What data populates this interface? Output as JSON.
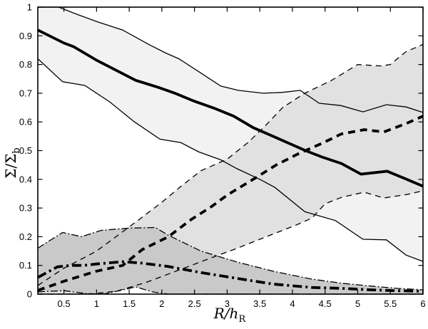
{
  "figure": {
    "background": "#ffffff"
  },
  "axes": {
    "ylabel_main": "Σ/Σ",
    "ylabel_sub": "b",
    "xlabel_main": "R/h",
    "xlabel_sub": "R"
  },
  "chart_data": {
    "type": "line",
    "title": "",
    "xlabel": "R/h_R",
    "ylabel": "Σ/Σ_b",
    "xlim": [
      0.1,
      6.0
    ],
    "ylim": [
      0,
      1
    ],
    "grid": false,
    "legend": "none",
    "line_color": "#000000",
    "x_ticks": [
      "0.5",
      "1",
      "1.5",
      "2",
      "2.5",
      "3",
      "3.5",
      "4",
      "4.5",
      "5",
      "5.5",
      "6"
    ],
    "y_ticks": [
      "0",
      "0.1",
      "0.2",
      "0.3",
      "0.4",
      "0.5",
      "0.6",
      "0.7",
      "0.8",
      "0.9",
      "1"
    ],
    "series": [
      {
        "name": "solid-series",
        "style": "solid",
        "band_fill": "#f2f2f2",
        "center": {
          "x": [
            0.1,
            0.5,
            0.65,
            1.0,
            1.3,
            1.6,
            1.95,
            2.2,
            2.5,
            2.8,
            3.1,
            3.4,
            3.7,
            3.95,
            4.2,
            4.45,
            4.75,
            5.05,
            5.45,
            5.75,
            6.0
          ],
          "y": [
            0.92,
            0.875,
            0.862,
            0.815,
            0.78,
            0.745,
            0.72,
            0.7,
            0.672,
            0.648,
            0.62,
            0.58,
            0.55,
            0.525,
            0.5,
            0.478,
            0.455,
            0.418,
            0.428,
            0.4,
            0.376
          ]
        },
        "upper": {
          "x": [
            0.1,
            0.42,
            0.7,
            1.0,
            1.4,
            1.8,
            2.06,
            2.26,
            2.6,
            2.9,
            3.17,
            3.55,
            3.85,
            4.12,
            4.41,
            4.74,
            5.08,
            5.44,
            5.74,
            6.0
          ],
          "y": [
            1.0,
            1.0,
            0.975,
            0.95,
            0.92,
            0.87,
            0.84,
            0.82,
            0.77,
            0.725,
            0.71,
            0.7,
            0.703,
            0.71,
            0.665,
            0.657,
            0.635,
            0.66,
            0.652,
            0.633
          ]
        },
        "lower": {
          "x": [
            0.1,
            0.48,
            0.82,
            1.2,
            1.58,
            1.97,
            2.29,
            2.56,
            2.9,
            3.15,
            3.5,
            3.73,
            4.19,
            4.66,
            5.08,
            5.44,
            5.74,
            6.0
          ],
          "y": [
            0.82,
            0.74,
            0.727,
            0.67,
            0.6,
            0.54,
            0.528,
            0.496,
            0.468,
            0.437,
            0.4,
            0.372,
            0.287,
            0.256,
            0.191,
            0.189,
            0.136,
            0.114
          ]
        }
      },
      {
        "name": "dashed-series",
        "style": "dashed",
        "band_fill": "#e1e1e1",
        "center": {
          "x": [
            0.1,
            0.5,
            1.0,
            1.4,
            1.7,
            2.1,
            2.45,
            2.76,
            3.0,
            3.4,
            3.75,
            4.1,
            4.45,
            4.75,
            5.1,
            5.4,
            5.75,
            6.0
          ],
          "y": [
            0.013,
            0.045,
            0.08,
            0.1,
            0.155,
            0.2,
            0.26,
            0.305,
            0.345,
            0.4,
            0.45,
            0.49,
            0.525,
            0.558,
            0.573,
            0.565,
            0.595,
            0.62
          ]
        },
        "upper": {
          "x": [
            0.1,
            0.5,
            1.0,
            1.63,
            2.0,
            2.29,
            2.6,
            3.0,
            3.33,
            3.6,
            3.85,
            4.19,
            4.6,
            5.0,
            5.35,
            5.5,
            5.74,
            6.0
          ],
          "y": [
            0.03,
            0.09,
            0.15,
            0.256,
            0.32,
            0.375,
            0.43,
            0.47,
            0.53,
            0.59,
            0.65,
            0.7,
            0.745,
            0.8,
            0.795,
            0.8,
            0.845,
            0.87
          ]
        },
        "lower": {
          "x": [
            0.1,
            0.9,
            1.3,
            1.75,
            2.1,
            2.45,
            2.8,
            3.1,
            3.6,
            4.05,
            4.3,
            4.5,
            4.75,
            5.1,
            5.4,
            5.75,
            6.0
          ],
          "y": [
            0.0,
            0.0,
            0.01,
            0.04,
            0.07,
            0.1,
            0.13,
            0.155,
            0.2,
            0.24,
            0.265,
            0.315,
            0.337,
            0.355,
            0.335,
            0.347,
            0.36
          ]
        }
      },
      {
        "name": "dashdot-series",
        "style": "dashdot",
        "band_fill": "#c9c9c9",
        "center": {
          "x": [
            0.1,
            0.4,
            0.6,
            0.8,
            1.0,
            1.4,
            1.7,
            2.1,
            2.6,
            3.2,
            3.7,
            4.3,
            4.75,
            5.2,
            5.6,
            6.0
          ],
          "y": [
            0.058,
            0.095,
            0.1,
            0.1,
            0.105,
            0.113,
            0.108,
            0.096,
            0.075,
            0.053,
            0.035,
            0.023,
            0.02,
            0.015,
            0.012,
            0.01
          ]
        },
        "upper": {
          "x": [
            0.1,
            0.48,
            0.77,
            1.07,
            1.5,
            1.9,
            2.1,
            2.6,
            3.15,
            3.7,
            4.3,
            4.75,
            5.2,
            5.6,
            6.0
          ],
          "y": [
            0.16,
            0.215,
            0.2,
            0.222,
            0.23,
            0.232,
            0.205,
            0.15,
            0.112,
            0.08,
            0.052,
            0.038,
            0.028,
            0.02,
            0.015
          ]
        },
        "lower": {
          "x": [
            0.1,
            0.5,
            0.85,
            1.1,
            1.35,
            1.6,
            1.85,
            2.1,
            6.0
          ],
          "y": [
            0.008,
            0.012,
            0.002,
            0.0,
            0.012,
            0.025,
            0.008,
            0.0,
            0.0
          ]
        }
      }
    ]
  }
}
